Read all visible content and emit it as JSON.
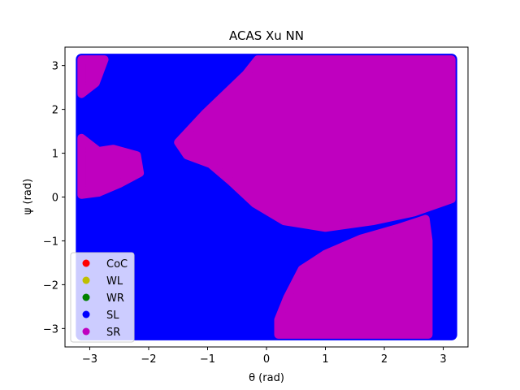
{
  "chart_data": {
    "type": "scatter",
    "title": "ACAS Xu NN",
    "xlabel": "θ (rad)",
    "ylabel": "ψ (rad)",
    "xlim": [
      -3.42,
      3.42
    ],
    "ylim": [
      -3.42,
      3.42
    ],
    "xticks": [
      -3,
      -2,
      -1,
      0,
      1,
      2,
      3
    ],
    "yticks": [
      -3,
      -2,
      -1,
      0,
      1,
      2,
      3
    ],
    "grid": false,
    "legend_placement": "lower-left",
    "series": [
      {
        "name": "CoC",
        "color": "#ff0000",
        "region": "none"
      },
      {
        "name": "WL",
        "color": "#bfbf00",
        "region": "none"
      },
      {
        "name": "WR",
        "color": "#008000",
        "region": "none"
      },
      {
        "name": "SL",
        "color": "#0000ff",
        "region": "background"
      },
      {
        "name": "SR",
        "color": "#bf00bf",
        "region": "polygons",
        "polygons": [
          [
            [
              -0.15,
              3.14
            ],
            [
              3.14,
              3.14
            ],
            [
              3.14,
              -0.05
            ],
            [
              2.5,
              -0.35
            ],
            [
              1.8,
              -0.55
            ],
            [
              1.0,
              -0.7
            ],
            [
              0.3,
              -0.55
            ],
            [
              -0.2,
              -0.15
            ],
            [
              -0.6,
              0.35
            ],
            [
              -0.95,
              0.75
            ],
            [
              -1.35,
              0.95
            ],
            [
              -1.5,
              1.25
            ],
            [
              -1.05,
              1.9
            ],
            [
              -0.7,
              2.35
            ],
            [
              -0.35,
              2.8
            ]
          ],
          [
            [
              -3.14,
              1.35
            ],
            [
              -2.85,
              1.05
            ],
            [
              -2.6,
              1.1
            ],
            [
              -2.2,
              0.95
            ],
            [
              -2.15,
              0.55
            ],
            [
              -2.5,
              0.3
            ],
            [
              -2.85,
              0.1
            ],
            [
              -3.14,
              0.05
            ]
          ],
          [
            [
              -3.14,
              3.14
            ],
            [
              -2.75,
              3.14
            ],
            [
              -2.9,
              2.6
            ],
            [
              -3.14,
              2.35
            ]
          ],
          [
            [
              0.2,
              -3.14
            ],
            [
              2.75,
              -3.14
            ],
            [
              2.75,
              -1.0
            ],
            [
              2.7,
              -0.5
            ],
            [
              2.25,
              -0.7
            ],
            [
              1.6,
              -0.95
            ],
            [
              1.0,
              -1.3
            ],
            [
              0.6,
              -1.65
            ],
            [
              0.35,
              -2.3
            ],
            [
              0.2,
              -2.8
            ]
          ]
        ]
      }
    ]
  }
}
